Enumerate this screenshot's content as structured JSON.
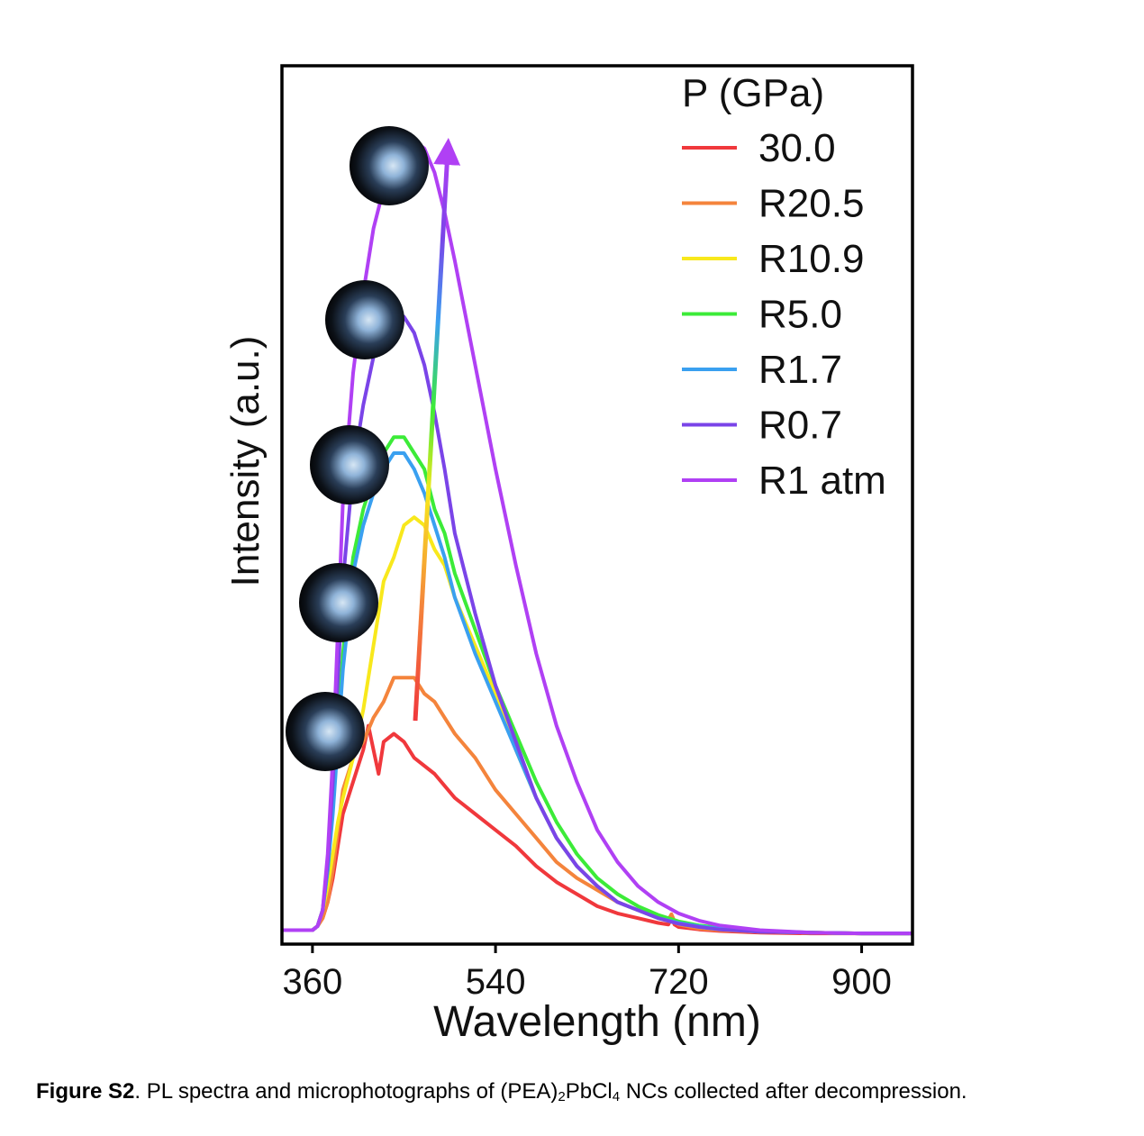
{
  "chart_data": {
    "type": "line",
    "xlabel": "Wavelength (nm)",
    "ylabel": "Intensity (a.u.)",
    "xlim": [
      330,
      950
    ],
    "ylim": [
      0,
      1.0
    ],
    "xticks": [
      360,
      540,
      720,
      900
    ],
    "yticks_shown": false,
    "legend": {
      "title": "P (GPa)",
      "placement": "top-right"
    },
    "annotations": [
      "arrow from R20.5 peak region up to R1 atm peak",
      "five micrograph insets of sample chamber"
    ],
    "series": [
      {
        "name": "30.0",
        "color": "#f0383c",
        "x": [
          330,
          360,
          365,
          370,
          375,
          380,
          385,
          390,
          400,
          410,
          415,
          420,
          425,
          430,
          440,
          450,
          460,
          480,
          500,
          520,
          540,
          560,
          580,
          600,
          620,
          640,
          660,
          680,
          700,
          710,
          713,
          716,
          720,
          740,
          760,
          800,
          850,
          900,
          950
        ],
        "y": [
          0.005,
          0.005,
          0.01,
          0.02,
          0.04,
          0.07,
          0.11,
          0.15,
          0.19,
          0.23,
          0.26,
          0.23,
          0.2,
          0.24,
          0.25,
          0.24,
          0.22,
          0.2,
          0.17,
          0.15,
          0.13,
          0.11,
          0.085,
          0.065,
          0.05,
          0.035,
          0.026,
          0.02,
          0.014,
          0.012,
          0.02,
          0.012,
          0.009,
          0.006,
          0.004,
          0.002,
          0.001,
          0.001,
          0.001
        ]
      },
      {
        "name": "R20.5",
        "color": "#f4843c",
        "x": [
          330,
          360,
          365,
          370,
          375,
          380,
          385,
          390,
          400,
          410,
          420,
          430,
          440,
          450,
          460,
          470,
          480,
          490,
          500,
          520,
          540,
          560,
          580,
          600,
          620,
          640,
          660,
          680,
          700,
          710,
          713,
          716,
          720,
          740,
          760,
          800,
          850,
          900,
          950
        ],
        "y": [
          0.005,
          0.005,
          0.01,
          0.02,
          0.04,
          0.08,
          0.13,
          0.18,
          0.22,
          0.24,
          0.27,
          0.29,
          0.32,
          0.32,
          0.32,
          0.3,
          0.29,
          0.27,
          0.25,
          0.22,
          0.18,
          0.15,
          0.12,
          0.09,
          0.07,
          0.055,
          0.04,
          0.03,
          0.022,
          0.018,
          0.025,
          0.016,
          0.012,
          0.007,
          0.005,
          0.003,
          0.002,
          0.001,
          0.001
        ]
      },
      {
        "name": "R10.9",
        "color": "#f8e81c",
        "x": [
          330,
          360,
          365,
          370,
          375,
          380,
          385,
          390,
          400,
          410,
          420,
          430,
          440,
          450,
          460,
          470,
          480,
          490,
          500,
          520,
          540,
          560,
          580,
          600,
          620,
          640,
          660,
          680,
          700,
          720,
          740,
          760,
          800,
          850,
          900,
          950
        ],
        "y": [
          0.005,
          0.005,
          0.01,
          0.03,
          0.06,
          0.1,
          0.14,
          0.17,
          0.22,
          0.28,
          0.36,
          0.44,
          0.47,
          0.51,
          0.52,
          0.51,
          0.48,
          0.46,
          0.42,
          0.36,
          0.3,
          0.23,
          0.17,
          0.12,
          0.085,
          0.06,
          0.04,
          0.03,
          0.02,
          0.013,
          0.009,
          0.006,
          0.003,
          0.002,
          0.001,
          0.001
        ]
      },
      {
        "name": "R5.0",
        "color": "#3ceb38",
        "x": [
          330,
          360,
          365,
          370,
          375,
          380,
          385,
          390,
          400,
          410,
          420,
          430,
          440,
          450,
          460,
          470,
          480,
          490,
          500,
          520,
          540,
          560,
          580,
          600,
          620,
          640,
          660,
          680,
          700,
          720,
          740,
          760,
          800,
          850,
          900,
          950
        ],
        "y": [
          0.005,
          0.005,
          0.01,
          0.03,
          0.08,
          0.16,
          0.26,
          0.35,
          0.47,
          0.53,
          0.57,
          0.6,
          0.62,
          0.62,
          0.6,
          0.58,
          0.53,
          0.5,
          0.45,
          0.38,
          0.31,
          0.25,
          0.19,
          0.14,
          0.1,
          0.07,
          0.05,
          0.035,
          0.024,
          0.016,
          0.011,
          0.008,
          0.004,
          0.002,
          0.001,
          0.001
        ]
      },
      {
        "name": "R1.7",
        "color": "#3aa0f0",
        "x": [
          330,
          360,
          365,
          370,
          375,
          380,
          385,
          390,
          400,
          410,
          420,
          430,
          440,
          450,
          460,
          470,
          480,
          490,
          500,
          520,
          540,
          560,
          580,
          600,
          620,
          640,
          660,
          680,
          700,
          720,
          740,
          760,
          800,
          850,
          900,
          950
        ],
        "y": [
          0.005,
          0.005,
          0.01,
          0.03,
          0.08,
          0.15,
          0.24,
          0.33,
          0.45,
          0.51,
          0.55,
          0.58,
          0.6,
          0.6,
          0.58,
          0.55,
          0.51,
          0.47,
          0.42,
          0.35,
          0.29,
          0.23,
          0.17,
          0.12,
          0.085,
          0.06,
          0.04,
          0.03,
          0.02,
          0.014,
          0.01,
          0.007,
          0.003,
          0.002,
          0.001,
          0.001
        ]
      },
      {
        "name": "R0.7",
        "color": "#7a44e8",
        "x": [
          330,
          360,
          365,
          370,
          375,
          380,
          385,
          390,
          400,
          410,
          420,
          430,
          440,
          450,
          460,
          470,
          480,
          490,
          500,
          520,
          540,
          560,
          580,
          600,
          620,
          640,
          660,
          680,
          700,
          720,
          740,
          760,
          800,
          850,
          900,
          950
        ],
        "y": [
          0.005,
          0.005,
          0.01,
          0.03,
          0.09,
          0.19,
          0.32,
          0.44,
          0.58,
          0.66,
          0.72,
          0.76,
          0.78,
          0.77,
          0.75,
          0.71,
          0.65,
          0.58,
          0.5,
          0.4,
          0.31,
          0.24,
          0.17,
          0.12,
          0.085,
          0.06,
          0.04,
          0.03,
          0.02,
          0.013,
          0.009,
          0.006,
          0.003,
          0.002,
          0.001,
          0.001
        ]
      },
      {
        "name": "R1 atm",
        "color": "#b040f4",
        "x": [
          330,
          360,
          365,
          370,
          375,
          380,
          385,
          390,
          400,
          410,
          420,
          430,
          440,
          450,
          460,
          465,
          470,
          480,
          490,
          500,
          520,
          540,
          560,
          580,
          600,
          620,
          640,
          660,
          680,
          700,
          720,
          740,
          760,
          800,
          850,
          900,
          950
        ],
        "y": [
          0.005,
          0.005,
          0.01,
          0.03,
          0.1,
          0.22,
          0.38,
          0.54,
          0.7,
          0.8,
          0.88,
          0.93,
          0.95,
          0.96,
          0.98,
          0.985,
          0.98,
          0.95,
          0.9,
          0.84,
          0.71,
          0.58,
          0.46,
          0.35,
          0.26,
          0.19,
          0.13,
          0.09,
          0.06,
          0.04,
          0.026,
          0.017,
          0.011,
          0.005,
          0.002,
          0.001,
          0.001
        ]
      }
    ]
  },
  "caption": {
    "label": "Figure S2",
    "text_before": ". PL spectra and microphotographs of (PEA)",
    "sub1": "2",
    "mid": "PbCl",
    "sub2": "4",
    "text_after": " NCs collected after decompression."
  }
}
